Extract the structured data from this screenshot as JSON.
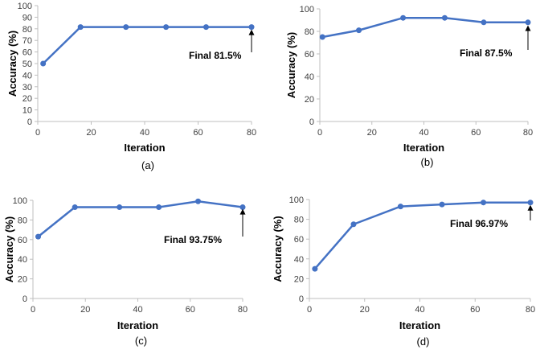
{
  "colors": {
    "series": "#4472C4",
    "axis": "#BFBFBF",
    "text": "#404040",
    "arrow": "#000000"
  },
  "chart_data": [
    {
      "type": "line",
      "caption": "(a)",
      "xlabel": "Iteration",
      "ylabel": "Accuracy (%)",
      "xlim": [
        0,
        80
      ],
      "ylim": [
        0,
        100
      ],
      "xticks": [
        "0",
        "20",
        "40",
        "60",
        "80"
      ],
      "yticks": [
        "0",
        "10",
        "20",
        "30",
        "40",
        "50",
        "60",
        "70",
        "80",
        "90",
        "100"
      ],
      "grid": false,
      "series": [
        {
          "x": [
            2,
            16,
            33,
            48,
            63,
            80
          ],
          "y": [
            50,
            81.5,
            81.5,
            81.5,
            81.5,
            81.5
          ]
        }
      ],
      "annotation": {
        "text": "Final 81.5%",
        "x": 80,
        "y": 81.5
      }
    },
    {
      "type": "line",
      "caption": "(b)",
      "xlabel": "Iteration",
      "ylabel": "Accuracy (%)",
      "xlim": [
        0,
        80
      ],
      "ylim": [
        0,
        100
      ],
      "xticks": [
        "0",
        "20",
        "40",
        "60",
        "80"
      ],
      "yticks": [
        "0",
        "20",
        "40",
        "60",
        "80",
        "100"
      ],
      "grid": false,
      "series": [
        {
          "x": [
            1,
            15,
            32,
            48,
            63,
            80
          ],
          "y": [
            75,
            81,
            92,
            92,
            88,
            88
          ]
        }
      ],
      "annotation": {
        "text": "Final 87.5%",
        "x": 80,
        "y": 87.5
      }
    },
    {
      "type": "line",
      "caption": "(c)",
      "xlabel": "Iteration",
      "ylabel": "Accuracy (%)",
      "xlim": [
        0,
        80
      ],
      "ylim": [
        0,
        100
      ],
      "xticks": [
        "0",
        "20",
        "40",
        "60",
        "80"
      ],
      "yticks": [
        "0",
        "20",
        "40",
        "60",
        "80",
        "100"
      ],
      "grid": false,
      "series": [
        {
          "x": [
            2,
            16,
            33,
            48,
            63,
            80
          ],
          "y": [
            63,
            93,
            93,
            93,
            99,
            93
          ]
        }
      ],
      "annotation": {
        "text": "Final 93.75%",
        "x": 80,
        "y": 93.75
      }
    },
    {
      "type": "line",
      "caption": "(d)",
      "xlabel": "Iteration",
      "ylabel": "Accuracy (%)",
      "xlim": [
        0,
        80
      ],
      "ylim": [
        0,
        100
      ],
      "xticks": [
        "0",
        "20",
        "40",
        "60",
        "80"
      ],
      "yticks": [
        "0",
        "20",
        "40",
        "60",
        "80",
        "100"
      ],
      "grid": false,
      "series": [
        {
          "x": [
            2,
            16,
            33,
            48,
            63,
            80
          ],
          "y": [
            30,
            75,
            93,
            95,
            97,
            97
          ]
        }
      ],
      "annotation": {
        "text": "Final 96.97%",
        "x": 80,
        "y": 96.97
      }
    }
  ]
}
